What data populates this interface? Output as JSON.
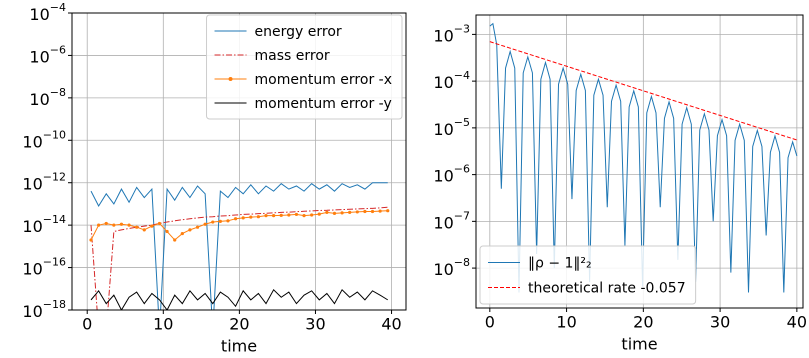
{
  "chart_data": [
    {
      "type": "line",
      "xlabel": "time",
      "log_y": true,
      "grid": true,
      "legend": "upper right",
      "xlim": [
        -2,
        41.9
      ],
      "xticks": [
        0,
        10,
        20,
        30,
        40
      ],
      "ylim": [
        1e-18,
        0.0001
      ],
      "yticks": [
        {
          "value": 1e-18,
          "label": "10−18"
        },
        {
          "value": 1e-16,
          "label": "10−16"
        },
        {
          "value": 1e-14,
          "label": "10−14"
        },
        {
          "value": 1e-12,
          "label": "10−12"
        },
        {
          "value": 1e-10,
          "label": "10−10"
        },
        {
          "value": 1e-08,
          "label": "10−8"
        },
        {
          "value": 1e-06,
          "label": "10−6"
        },
        {
          "value": 0.0001,
          "label": "10−4"
        }
      ],
      "x": [
        0.5,
        1.5,
        2.5,
        3.5,
        4.5,
        5.5,
        6.5,
        7.5,
        8.5,
        9.5,
        10.5,
        11.5,
        12.5,
        13.5,
        14.5,
        15.5,
        16.5,
        17.5,
        18.5,
        19.5,
        20.5,
        21.5,
        22.5,
        23.5,
        24.5,
        25.5,
        26.5,
        27.5,
        28.5,
        29.5,
        30.5,
        31.5,
        32.5,
        33.5,
        34.5,
        35.5,
        36.5,
        37.5,
        38.5,
        39.5
      ],
      "series": [
        {
          "name": "energy error",
          "color": "#1f77b4",
          "linestyle": "solid",
          "values": [
            4e-13,
            8e-14,
            3e-13,
            1e-13,
            5e-13,
            1.2e-13,
            6e-13,
            2e-13,
            5e-13,
            1e-19,
            5e-13,
            1.5e-13,
            6e-13,
            2e-13,
            7e-13,
            3e-13,
            1e-19,
            4e-13,
            2e-13,
            6e-13,
            3e-13,
            8e-13,
            3e-13,
            7e-13,
            4e-13,
            9e-13,
            5e-13,
            7e-13,
            4e-13,
            9e-13,
            5e-13,
            8e-13,
            4e-13,
            9e-13,
            6e-13,
            8e-13,
            5e-13,
            1e-12,
            1e-12,
            1e-12
          ]
        },
        {
          "name": "mass error",
          "color": "#d62728",
          "linestyle": "dashdot",
          "values": [
            1e-14,
            1e-19,
            1e-19,
            5e-15,
            6e-15,
            7e-15,
            8e-15,
            9e-15,
            1e-14,
            1.2e-14,
            1.4e-14,
            1.6e-14,
            1.8e-14,
            2e-14,
            2.2e-14,
            2.4e-14,
            2.5e-14,
            2.7e-14,
            2.8e-14,
            3e-14,
            3.2e-14,
            3.3e-14,
            3.5e-14,
            3.6e-14,
            3.8e-14,
            4e-14,
            4.1e-14,
            4.3e-14,
            4.5e-14,
            4.7e-14,
            4.9e-14,
            5e-14,
            5.2e-14,
            5.4e-14,
            5.6e-14,
            5.8e-14,
            6e-14,
            6.2e-14,
            6.5e-14,
            7e-14
          ]
        },
        {
          "name": "momentum error -x",
          "color": "#ff7f0e",
          "linestyle": "solid",
          "marker": "o",
          "values": [
            2e-15,
            1e-14,
            1.2e-14,
            1e-14,
            1.1e-14,
            1e-14,
            8e-15,
            6e-15,
            9e-15,
            1.2e-14,
            5e-15,
            2e-15,
            4e-15,
            6e-15,
            8e-15,
            1.1e-14,
            1.4e-14,
            1.5e-14,
            1.6e-14,
            2e-14,
            2.2e-14,
            2.4e-14,
            2.5e-14,
            2.8e-14,
            2.8e-14,
            2.9e-14,
            3e-14,
            3.2e-14,
            2.8e-14,
            3e-14,
            3.3e-14,
            4e-14,
            3.6e-14,
            3.8e-14,
            4e-14,
            4.2e-14,
            4.4e-14,
            4.4e-14,
            4.6e-14,
            4.8e-14
          ]
        },
        {
          "name": "momentum error -y",
          "color": "#000000",
          "linestyle": "solid",
          "values": [
            3e-18,
            8e-18,
            2e-18,
            5e-18,
            1e-18,
            4e-18,
            7e-18,
            2e-18,
            6e-18,
            3e-18,
            1e-18,
            5e-18,
            2e-18,
            8e-18,
            3e-18,
            6e-18,
            2e-18,
            7e-18,
            4e-18,
            1.5e-18,
            8e-18,
            3e-18,
            6e-18,
            2e-18,
            9e-18,
            4e-18,
            7e-18,
            2e-18,
            5e-18,
            8e-18,
            3e-18,
            6e-18,
            2e-18,
            9e-18,
            4e-18,
            7e-18,
            3e-18,
            8e-18,
            5e-18,
            3e-18
          ]
        }
      ]
    },
    {
      "type": "line",
      "xlabel": "time",
      "log_y": true,
      "grid": true,
      "legend": "lower left",
      "xlim": [
        -1.8,
        40.8
      ],
      "xticks": [
        0,
        10,
        20,
        30,
        40
      ],
      "ylim": [
        1.4e-09,
        0.0026
      ],
      "yticks": [
        {
          "value": 1e-08,
          "label": "10−8"
        },
        {
          "value": 1e-07,
          "label": "10−7"
        },
        {
          "value": 1e-06,
          "label": "10−6"
        },
        {
          "value": 1e-05,
          "label": "10−5"
        },
        {
          "value": 0.0001,
          "label": "10−4"
        },
        {
          "value": 0.001,
          "label": "10−3"
        }
      ],
      "series": [
        {
          "name": "‖ρ − 1‖²₂",
          "color": "#1f77b4",
          "linestyle": "solid",
          "x": [
            0,
            0.4,
            0.9,
            1.5,
            2.05,
            2.65,
            3.25,
            3.8,
            4.35,
            4.95,
            5.55,
            6.1,
            6.65,
            7.25,
            7.85,
            8.4,
            8.95,
            9.55,
            10.15,
            10.7,
            11.25,
            11.85,
            12.45,
            13.0,
            13.55,
            14.15,
            14.75,
            15.3,
            15.85,
            16.45,
            17.05,
            17.6,
            18.15,
            18.75,
            19.35,
            19.9,
            20.45,
            21.05,
            21.65,
            22.2,
            22.75,
            23.35,
            23.95,
            24.5,
            25.05,
            25.65,
            26.25,
            26.8,
            27.35,
            27.95,
            28.55,
            29.1,
            29.65,
            30.25,
            30.85,
            31.4,
            31.95,
            32.55,
            33.15,
            33.7,
            34.25,
            34.85,
            35.45,
            36.0,
            36.55,
            37.15,
            37.75,
            38.3,
            38.85,
            39.45,
            40
          ],
          "values": [
            0.0015,
            0.0017,
            0.0006,
            5e-07,
            0.00019,
            0.00043,
            0.00019,
            3e-09,
            0.00015,
            0.00033,
            0.00015,
            2e-08,
            0.00011,
            0.00025,
            0.00011,
            1e-08,
            8.6e-05,
            0.00019,
            8.6e-05,
            3e-07,
            6.3e-05,
            0.00014,
            6.3e-05,
            5e-09,
            5e-05,
            0.00011,
            5e-05,
            2e-07,
            3.7e-05,
            8.2e-05,
            3.7e-05,
            3e-08,
            2.8e-05,
            6.2e-05,
            2.8e-05,
            4e-09,
            2.1e-05,
            4.7e-05,
            2.1e-05,
            2e-07,
            1.6e-05,
            3.6e-05,
            1.6e-05,
            1.5e-08,
            1.2e-05,
            2.7e-05,
            1.2e-05,
            5e-09,
            9e-06,
            2e-05,
            9e-06,
            1e-07,
            6.8e-06,
            1.5e-05,
            6.8e-06,
            8e-09,
            5.4e-06,
            1.2e-05,
            5.4e-06,
            3e-09,
            4e-06,
            8.8e-06,
            4e-06,
            5e-08,
            3e-06,
            6.7e-06,
            3e-06,
            3e-09,
            2.3e-06,
            5e-06,
            2.5e-06
          ]
        },
        {
          "name": "theoretical rate -0.057",
          "color": "#ff0000",
          "linestyle": "dashed",
          "x": [
            0,
            40
          ],
          "values": [
            0.0007,
            5.5e-06
          ]
        }
      ]
    }
  ]
}
